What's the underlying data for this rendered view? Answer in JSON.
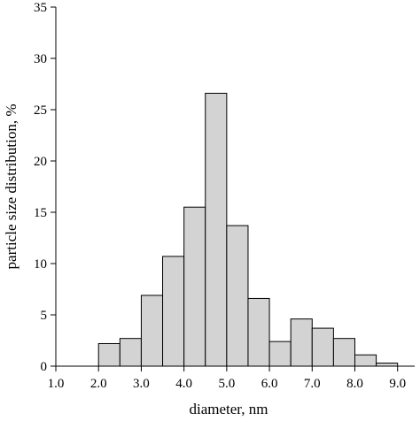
{
  "chart_data": {
    "type": "histogram",
    "xlabel": "diameter, nm",
    "ylabel": "particle size distribution, %",
    "bins": [
      2.0,
      2.5,
      3.0,
      3.5,
      4.0,
      4.5,
      5.0,
      5.5,
      6.0,
      6.5,
      7.0,
      7.5,
      8.0,
      8.5,
      9.0
    ],
    "values": [
      2.2,
      2.7,
      6.9,
      10.7,
      15.5,
      26.6,
      13.7,
      6.6,
      2.4,
      4.6,
      3.7,
      2.7,
      1.1,
      0.3
    ],
    "color": "#d3d3d3",
    "xlim": [
      1.0,
      9.4
    ],
    "xticks": [
      {
        "value": 1,
        "label": "1.0"
      },
      {
        "value": 2,
        "label": "2.0"
      },
      {
        "value": 3,
        "label": "3.0"
      },
      {
        "value": 4,
        "label": "4.0"
      },
      {
        "value": 5,
        "label": "5.0"
      },
      {
        "value": 6,
        "label": "6.0"
      },
      {
        "value": 7,
        "label": "7.0"
      },
      {
        "value": 8,
        "label": "8.0"
      },
      {
        "value": 9,
        "label": "9.0"
      }
    ],
    "ylim": [
      0,
      35
    ],
    "yticks": [
      0,
      5,
      10,
      15,
      20,
      25,
      30,
      35
    ],
    "grid": false
  }
}
